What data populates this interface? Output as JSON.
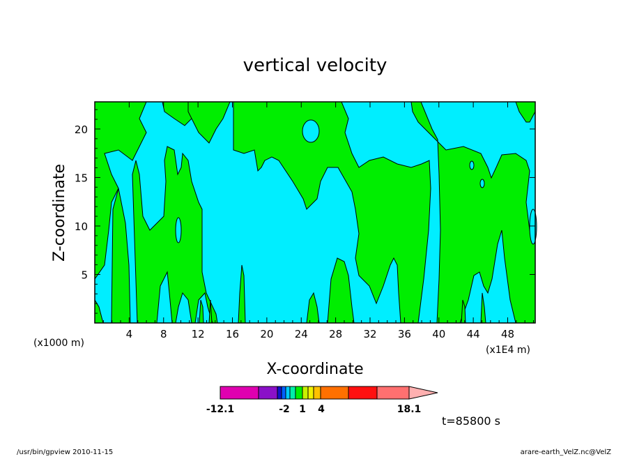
{
  "chart_data": {
    "type": "heatmap",
    "title": "vertical velocity",
    "xlabel": "X-coordinate",
    "ylabel": "Z-coordinate",
    "x_unit_left": "(x1000 m)",
    "x_unit_right": "(x1E4 m)",
    "xlim": [
      0,
      51.2
    ],
    "ylim": [
      0,
      22.8
    ],
    "x_ticks": [
      4,
      8,
      12,
      16,
      20,
      24,
      28,
      32,
      36,
      40,
      44,
      48
    ],
    "y_ticks": [
      5,
      10,
      15,
      20
    ],
    "colors": {
      "negative": "#00eeff",
      "positive": "#00ee00",
      "contour": "#000000"
    },
    "colorbar": {
      "min_label": "-12.1",
      "max_label": "18.1",
      "tick_labels": [
        "-12.1",
        "-2",
        "1",
        "4",
        "18.1"
      ],
      "segments": [
        "#e000b0",
        "#8a10c8",
        "#1010c8",
        "#0060ff",
        "#00ccff",
        "#00eeaa",
        "#00ee00",
        "#c8f000",
        "#f0f000",
        "#ffc000",
        "#ff7000",
        "#ff1010",
        "#ff7070",
        "#ffb0b0"
      ]
    },
    "time_label": "t=85800 s",
    "footer_left": "/usr/bin/gpview   2010-11-15",
    "footer_right": "arare-earth_VelZ.nc@VelZ"
  }
}
